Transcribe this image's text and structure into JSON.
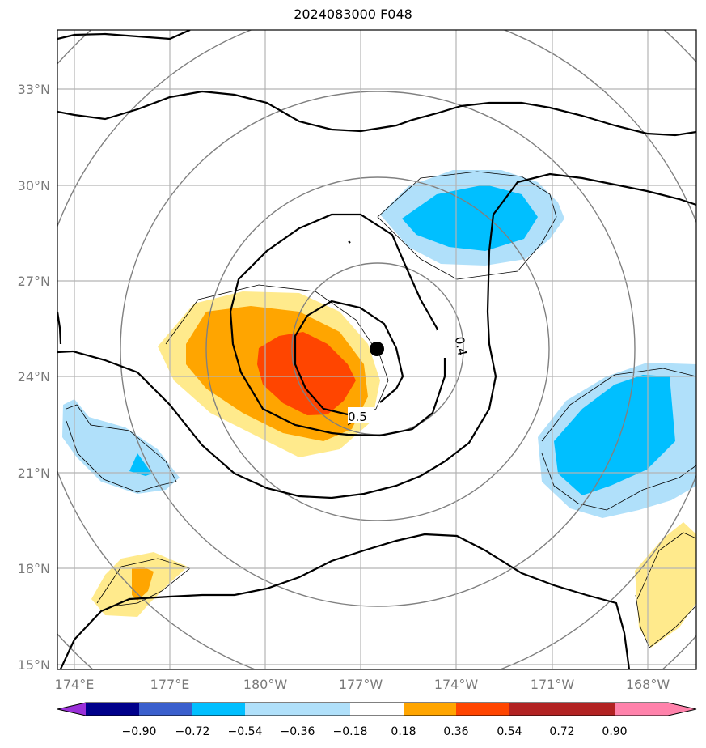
{
  "title": "2024083000 F048",
  "map": {
    "lon_labels": [
      "174°E",
      "177°E",
      "180°W",
      "177°W",
      "174°W",
      "171°W",
      "168°W"
    ],
    "lat_labels": [
      "33°N",
      "30°N",
      "27°N",
      "24°N",
      "21°N",
      "18°N",
      "15°N"
    ],
    "storm_center": {
      "lon": -176.5,
      "lat": 24.8
    },
    "contour_labels": [
      "0.4",
      "0.5"
    ]
  },
  "colorbar": {
    "labels": [
      "−0.90",
      "−0.72",
      "−0.54",
      "−0.36",
      "−0.18",
      "0.18",
      "0.36",
      "0.54",
      "0.72",
      "0.90"
    ],
    "colors": [
      "#9b30d9",
      "#00008b",
      "#3a5fcd",
      "#00bfff",
      "#b0e0fa",
      "#ffffff",
      "#ffea8c",
      "#ffa500",
      "#ff4500",
      "#b22222",
      "#ff82ab"
    ]
  }
}
